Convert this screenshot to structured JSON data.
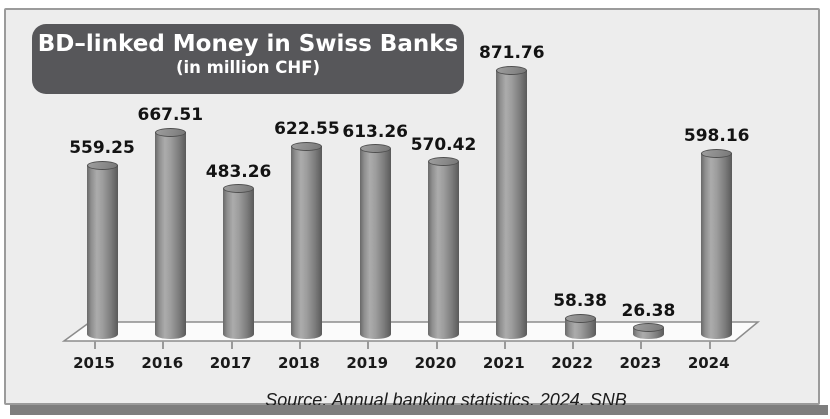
{
  "title": {
    "line1": "BD–linked Money in Swiss Banks",
    "line2": "(in million CHF)"
  },
  "chart_data": {
    "type": "bar",
    "bar_style": "3d-cylinder",
    "categories": [
      "2015",
      "2016",
      "2017",
      "2018",
      "2019",
      "2020",
      "2021",
      "2022",
      "2023",
      "2024"
    ],
    "values": [
      559.25,
      667.51,
      483.26,
      622.55,
      613.26,
      570.42,
      871.76,
      58.38,
      26.38,
      598.16
    ],
    "data_labels": [
      "559.25",
      "667.51",
      "483.26",
      "622.55",
      "613.26",
      "570.42",
      "871.76",
      "58.38",
      "26.38",
      "598.16"
    ],
    "title": "BD–linked Money in Swiss Banks",
    "subtitle": "(in million CHF)",
    "xlabel": "",
    "ylabel": "",
    "ylim": [
      0,
      900
    ],
    "grid": false,
    "legend": false,
    "floor_3d": true
  },
  "source": {
    "text": "Source: Annual banking statistics, 2024, SNB"
  },
  "colors": {
    "card_bg": "#ededed",
    "card_border": "#9b9b9b",
    "title_bg": "#57575a",
    "title_text": "#ffffff",
    "bar_light": "#acacac",
    "bar_dark": "#5a5a5a",
    "cap_fill": "#8a8a8a",
    "floor_fill": "#fbfbfb",
    "floor_stroke": "#8c8c8c",
    "label_text": "#131313",
    "shadow": "#7e7e7e"
  }
}
